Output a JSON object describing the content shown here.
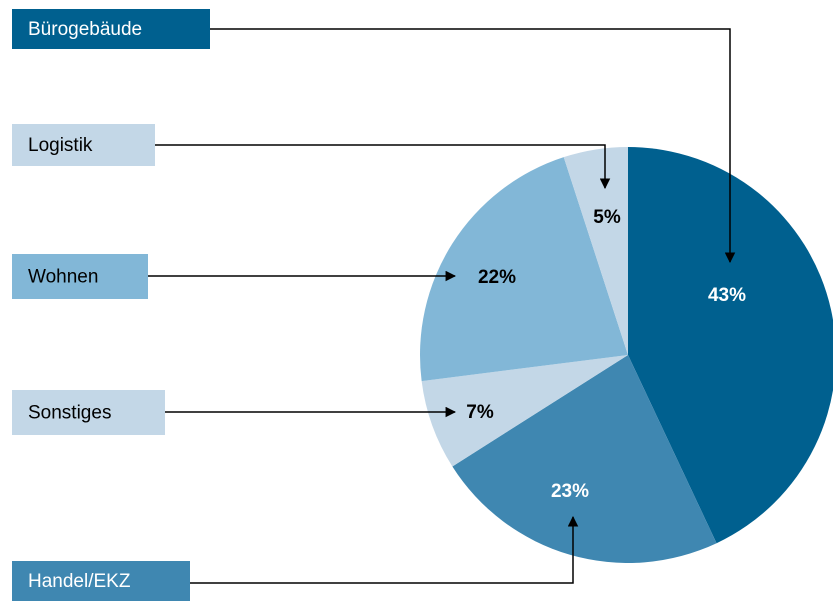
{
  "chart_data": {
    "type": "pie",
    "categories": [
      "Bürogebäude",
      "Handel/EKZ",
      "Sonstiges",
      "Wohnen",
      "Logistik"
    ],
    "values": [
      43,
      23,
      7,
      22,
      5
    ],
    "value_labels": [
      "43%",
      "23%",
      "7%",
      "22%",
      "5%"
    ],
    "colors": [
      "#00608f",
      "#3f87b1",
      "#c3d7e7",
      "#82b7d7",
      "#c3d7e7"
    ]
  }
}
